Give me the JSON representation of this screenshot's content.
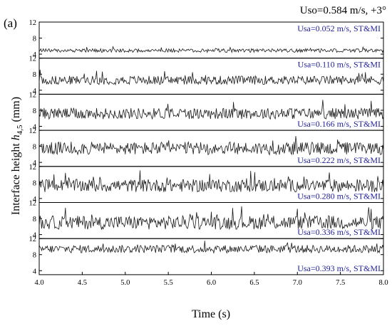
{
  "chart_data": {
    "type": "line",
    "panel_letter": "(a)",
    "header": "Uso=0.584 m/s, +3°",
    "xlabel": "Time (s)",
    "ylabel_prefix": "Interface height ",
    "ylabel_var": "h",
    "ylabel_sub": "4,5",
    "ylabel_unit": " (mm)",
    "xlim": [
      4.0,
      8.0
    ],
    "xticks": [
      "4.0",
      "4.5",
      "5.0",
      "5.5",
      "6.0",
      "6.5",
      "7.0",
      "7.5",
      "8.0"
    ],
    "ylim": [
      3,
      12
    ],
    "yticks": [
      "4",
      "8",
      "12"
    ],
    "series": [
      {
        "name": "Usa=0.052 m/s, ST&MI",
        "legend_position": "top-right",
        "mean": 4.9,
        "amplitude": 0.45
      },
      {
        "name": "Usa=0.110 m/s, ST&MI",
        "legend_position": "top-right",
        "mean": 6.5,
        "amplitude": 1.1
      },
      {
        "name": "Usa=0.166 m/s, ST&MI",
        "legend_position": "bottom-right",
        "mean": 7.2,
        "amplitude": 1.4
      },
      {
        "name": "Usa=0.222 m/s, ST&MI",
        "legend_position": "bottom-right",
        "mean": 7.5,
        "amplitude": 1.6
      },
      {
        "name": "Usa=0.280 m/s, ST&MI",
        "legend_position": "bottom-right",
        "mean": 7.2,
        "amplitude": 1.6
      },
      {
        "name": "Usa=0.336 m/s, ST&MI",
        "legend_position": "bottom-right",
        "mean": 7.0,
        "amplitude": 1.7
      },
      {
        "name": "Usa=0.393 m/s, ST&MI",
        "legend_position": "bottom-right",
        "mean": 9.4,
        "amplitude": 1.0
      }
    ]
  }
}
